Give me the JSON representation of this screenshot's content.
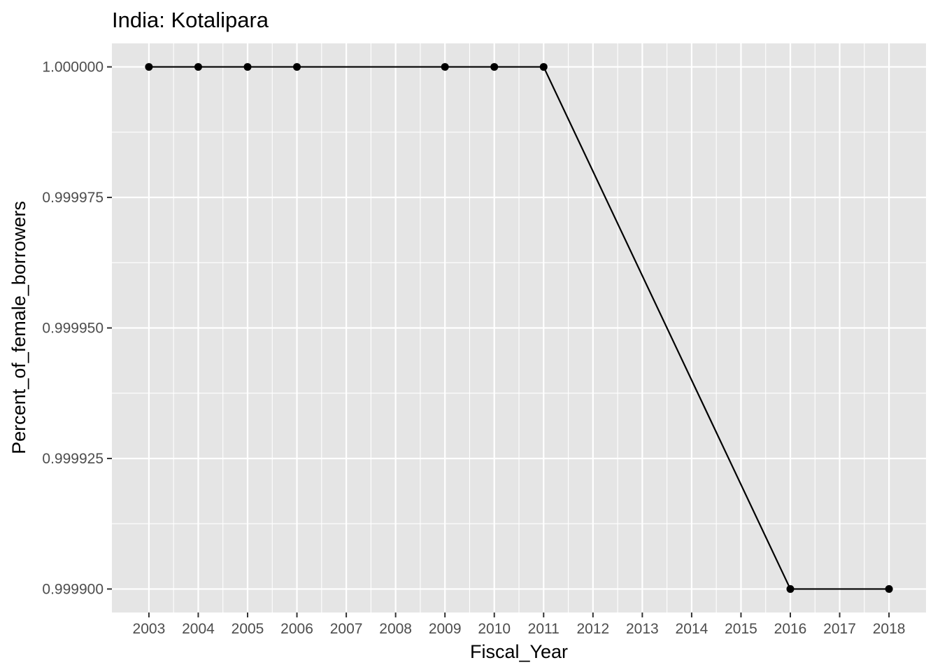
{
  "chart_data": {
    "type": "line",
    "title": "India:  Kotalipara",
    "xlabel": "Fiscal_Year",
    "ylabel": "Percent_of_female_borrowers",
    "x_ticks": [
      "2003",
      "2004",
      "2005",
      "2006",
      "2007",
      "2008",
      "2009",
      "2010",
      "2011",
      "2012",
      "2013",
      "2014",
      "2015",
      "2016",
      "2017",
      "2018"
    ],
    "y_ticks": [
      "0.999900",
      "0.999925",
      "0.999950",
      "0.999975",
      "1.000000"
    ],
    "xlim": [
      2002.25,
      2018.75
    ],
    "ylim": [
      0.9998955,
      1.0000045
    ],
    "grid": true,
    "series": [
      {
        "color": "#000000",
        "x": [
          2003,
          2004,
          2005,
          2006,
          2009,
          2010,
          2011,
          2016,
          2018
        ],
        "y": [
          1.0,
          1.0,
          1.0,
          1.0,
          1.0,
          1.0,
          1.0,
          0.9999,
          0.9999
        ]
      }
    ]
  },
  "colors": {
    "panel_background": "#e5e5e5",
    "grid_line": "#ffffff",
    "tick_text": "#4d4d4d",
    "tick_mark": "#333333"
  }
}
